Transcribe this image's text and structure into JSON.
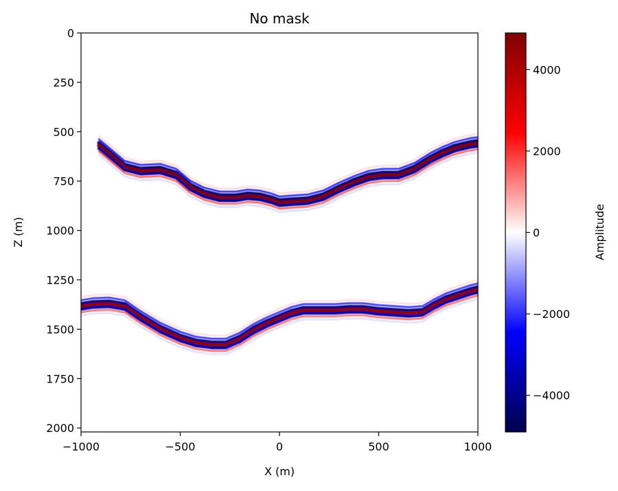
{
  "chart_data": {
    "type": "heatmap",
    "title": "No mask",
    "xlabel": "X (m)",
    "ylabel": "Z (m)",
    "xlim": [
      -1000,
      1000
    ],
    "ylim": [
      2020,
      0
    ],
    "x_ticks": [
      -1000,
      -500,
      0,
      500,
      1000
    ],
    "x_tick_labels": [
      "−1000",
      "−500",
      "0",
      "500",
      "1000"
    ],
    "y_ticks": [
      0,
      250,
      500,
      750,
      1000,
      1250,
      1500,
      1750,
      2000
    ],
    "y_tick_labels": [
      "0",
      "250",
      "500",
      "750",
      "1000",
      "1250",
      "1500",
      "1750",
      "2000"
    ],
    "colorbar": {
      "label": "Amplitude",
      "colormap": "seismic",
      "vmin": -4900,
      "vmax": 4900,
      "ticks": [
        4000,
        2000,
        0,
        -2000,
        -4000
      ],
      "tick_labels": [
        "4000",
        "2000",
        "0",
        "−2000",
        "−4000"
      ]
    },
    "reflectors": [
      {
        "name": "upper-reflector",
        "peak_amplitude": 4900,
        "points": [
          [
            -910,
            570
          ],
          [
            -850,
            620
          ],
          [
            -780,
            680
          ],
          [
            -700,
            700
          ],
          [
            -600,
            695
          ],
          [
            -520,
            720
          ],
          [
            -450,
            780
          ],
          [
            -380,
            815
          ],
          [
            -300,
            835
          ],
          [
            -220,
            835
          ],
          [
            -160,
            825
          ],
          [
            -100,
            830
          ],
          [
            -40,
            845
          ],
          [
            0,
            860
          ],
          [
            60,
            855
          ],
          [
            140,
            850
          ],
          [
            220,
            830
          ],
          [
            300,
            790
          ],
          [
            380,
            755
          ],
          [
            450,
            730
          ],
          [
            520,
            720
          ],
          [
            600,
            720
          ],
          [
            680,
            690
          ],
          [
            760,
            640
          ],
          [
            820,
            610
          ],
          [
            880,
            585
          ],
          [
            960,
            565
          ],
          [
            1000,
            560
          ]
        ]
      },
      {
        "name": "lower-reflector",
        "peak_amplitude": 4600,
        "points": [
          [
            -1000,
            1385
          ],
          [
            -940,
            1375
          ],
          [
            -860,
            1372
          ],
          [
            -780,
            1385
          ],
          [
            -700,
            1440
          ],
          [
            -600,
            1500
          ],
          [
            -500,
            1545
          ],
          [
            -420,
            1570
          ],
          [
            -340,
            1580
          ],
          [
            -270,
            1580
          ],
          [
            -200,
            1550
          ],
          [
            -130,
            1505
          ],
          [
            -60,
            1470
          ],
          [
            0,
            1445
          ],
          [
            60,
            1420
          ],
          [
            120,
            1405
          ],
          [
            200,
            1405
          ],
          [
            280,
            1405
          ],
          [
            350,
            1400
          ],
          [
            420,
            1400
          ],
          [
            500,
            1410
          ],
          [
            580,
            1415
          ],
          [
            650,
            1420
          ],
          [
            720,
            1415
          ],
          [
            780,
            1380
          ],
          [
            840,
            1350
          ],
          [
            900,
            1330
          ],
          [
            960,
            1310
          ],
          [
            1000,
            1300
          ]
        ]
      }
    ]
  }
}
